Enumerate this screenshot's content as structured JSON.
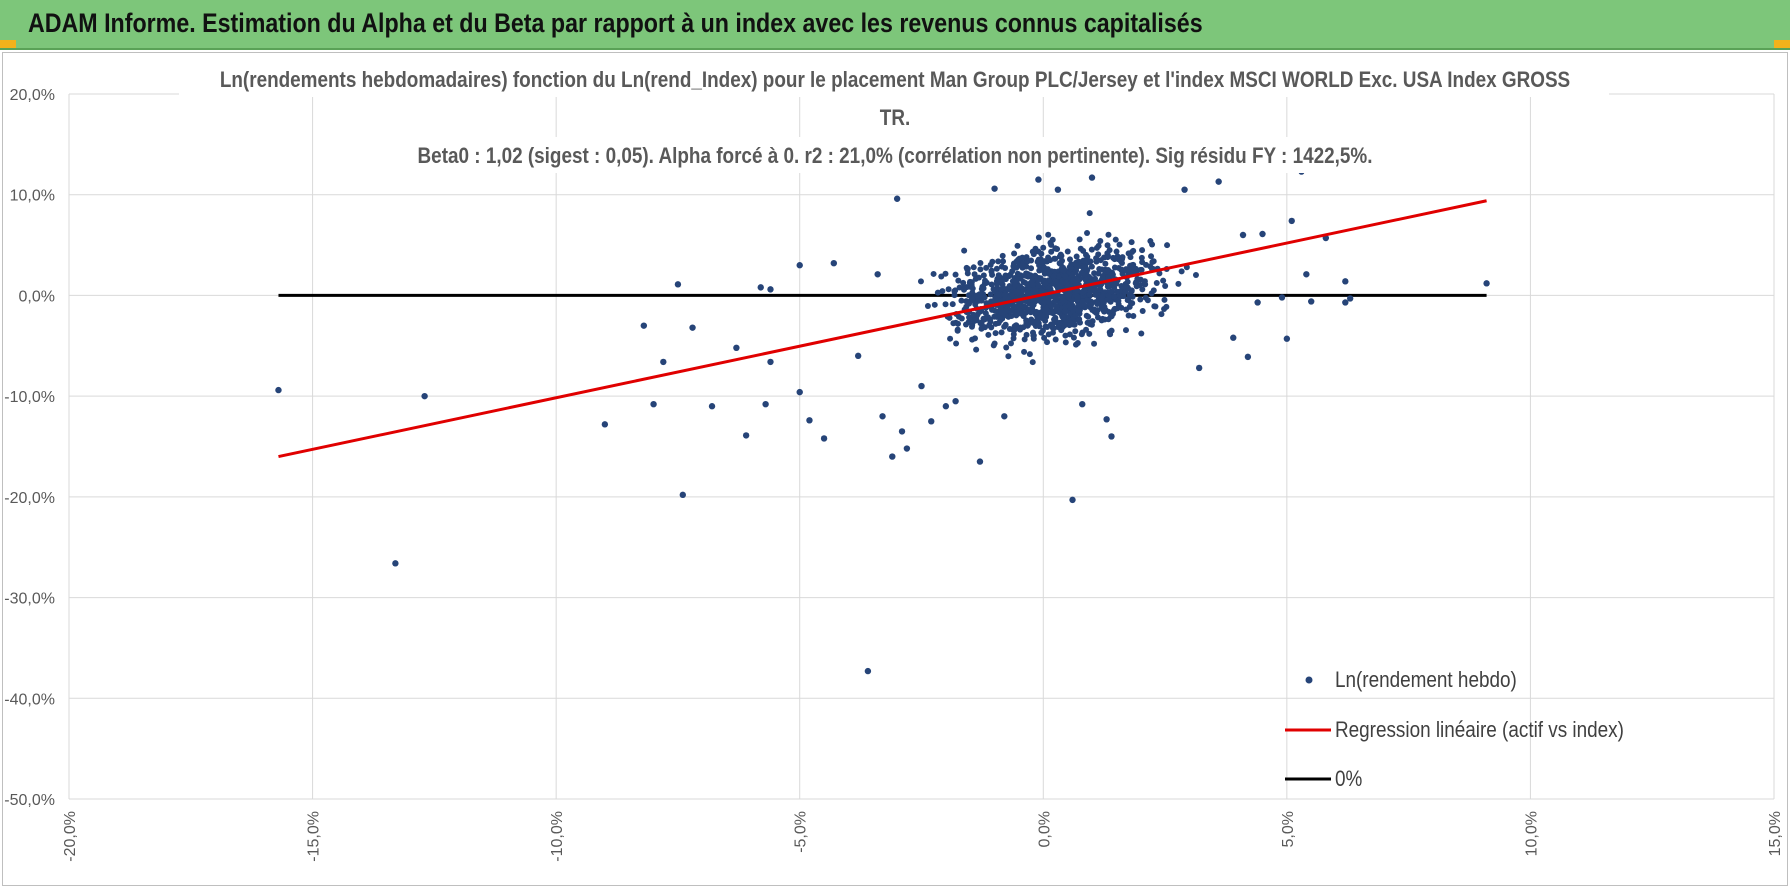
{
  "header": {
    "title": "ADAM Informe. Estimation du Alpha et du Beta par rapport à un index avec les revenus connus capitalisés"
  },
  "colors": {
    "header_bg": "#7dc67a",
    "points": "#264478",
    "regression": "#e00000",
    "zero_line": "#000000"
  },
  "chart_data": {
    "type": "scatter",
    "title_lines": [
      "Ln(rendements hebdomadaires) fonction du Ln(rend_Index) pour le placement Man Group PLC/Jersey et l'index MSCI WORLD Exc. USA Index GROSS",
      "TR.",
      "Beta0 : 1,02 (sigest : 0,05).  Alpha forcé à 0. r2 : 21,0% (corrélation non pertinente). Sig résidu FY : 1422,5%."
    ],
    "xlim": [
      -20,
      15
    ],
    "ylim": [
      -50,
      20
    ],
    "x_ticks": [
      -20,
      -15,
      -10,
      -5,
      0,
      5,
      10,
      15
    ],
    "y_ticks": [
      20,
      10,
      0,
      -10,
      -20,
      -30,
      -40,
      -50
    ],
    "x_tick_labels": [
      "-20,0%",
      "-15,0%",
      "-10,0%",
      "-5,0%",
      "0,0%",
      "5,0%",
      "10,0%",
      "15,0%"
    ],
    "y_tick_labels": [
      "20,0%",
      "10,0%",
      "0,0%",
      "-10,0%",
      "-20,0%",
      "-30,0%",
      "-40,0%",
      "-50,0%"
    ],
    "grid": true,
    "legend_position": "bottom-right",
    "legend": [
      "Ln(rendement hebdo)",
      "Regression linéaire (actif vs index)",
      "0%"
    ],
    "series": [
      {
        "name": "Ln(rendement hebdo)",
        "type": "scatter",
        "cluster": {
          "count": 1150,
          "center": [
            0.3,
            0.3
          ],
          "sd": [
            1.4,
            3.0
          ],
          "beta": 1.02
        },
        "points": [
          [
            -15.7,
            -9.4
          ],
          [
            -13.3,
            -26.6
          ],
          [
            -12.7,
            -10.0
          ],
          [
            -9.0,
            -12.8
          ],
          [
            -8.2,
            -3.0
          ],
          [
            -8.0,
            -10.8
          ],
          [
            -7.8,
            -6.6
          ],
          [
            -7.5,
            1.1
          ],
          [
            -7.4,
            -19.8
          ],
          [
            -7.2,
            -3.2
          ],
          [
            -6.8,
            -11.0
          ],
          [
            -6.3,
            -5.2
          ],
          [
            -6.1,
            -13.9
          ],
          [
            -5.8,
            0.8
          ],
          [
            -5.6,
            -6.6
          ],
          [
            -5.6,
            0.6
          ],
          [
            -5.7,
            -10.8
          ],
          [
            -5.0,
            -9.6
          ],
          [
            -5.0,
            3.0
          ],
          [
            -4.8,
            -12.4
          ],
          [
            -4.5,
            -14.2
          ],
          [
            -4.3,
            3.2
          ],
          [
            -3.8,
            -6.0
          ],
          [
            -3.6,
            -37.3
          ],
          [
            -3.4,
            2.1
          ],
          [
            -3.3,
            -12.0
          ],
          [
            -3.1,
            -16.0
          ],
          [
            -3.0,
            9.6
          ],
          [
            -2.9,
            -13.5
          ],
          [
            -2.8,
            -15.2
          ],
          [
            -2.5,
            -9.0
          ],
          [
            -2.3,
            -12.5
          ],
          [
            -2.0,
            -11.0
          ],
          [
            -1.8,
            -10.5
          ],
          [
            -1.3,
            -16.5
          ],
          [
            -1.0,
            10.6
          ],
          [
            -0.8,
            -12.0
          ],
          [
            -0.1,
            11.5
          ],
          [
            0.3,
            10.5
          ],
          [
            0.6,
            -20.3
          ],
          [
            0.8,
            -10.8
          ],
          [
            1.0,
            11.7
          ],
          [
            1.3,
            -12.3
          ],
          [
            1.4,
            -14.0
          ],
          [
            2.9,
            10.5
          ],
          [
            3.2,
            -7.2
          ],
          [
            3.6,
            11.3
          ],
          [
            3.9,
            -4.2
          ],
          [
            4.1,
            6.0
          ],
          [
            4.2,
            -6.1
          ],
          [
            4.4,
            -0.7
          ],
          [
            4.5,
            6.1
          ],
          [
            4.9,
            -0.2
          ],
          [
            5.0,
            -4.3
          ],
          [
            5.1,
            7.4
          ],
          [
            5.3,
            12.3
          ],
          [
            5.4,
            2.1
          ],
          [
            5.5,
            -0.6
          ],
          [
            5.8,
            5.7
          ],
          [
            6.2,
            1.4
          ],
          [
            6.2,
            -0.7
          ],
          [
            6.3,
            -0.3
          ],
          [
            9.1,
            1.2
          ]
        ]
      },
      {
        "name": "Regression linéaire (actif vs index)",
        "type": "line",
        "x": [
          -15.7,
          9.1
        ],
        "y": [
          -16.0,
          9.4
        ]
      },
      {
        "name": "0%",
        "type": "line",
        "x": [
          -15.7,
          9.1
        ],
        "y": [
          0,
          0
        ]
      }
    ]
  }
}
